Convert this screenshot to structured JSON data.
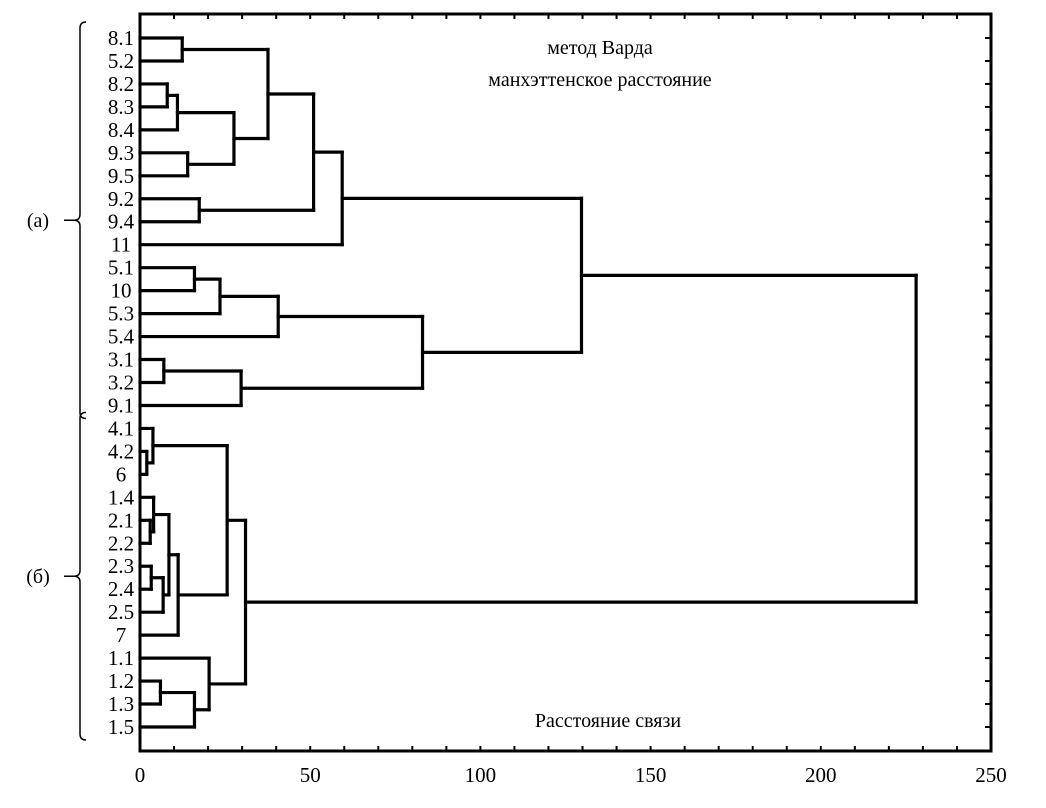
{
  "chart_data": {
    "type": "dendrogram",
    "orientation": "horizontal",
    "title_lines": [
      "метод Варда",
      "манхэттенское расстояние"
    ],
    "xlabel": "Расстояние связи",
    "xlim": [
      0,
      250
    ],
    "xticks": [
      0,
      50,
      100,
      150,
      200,
      250
    ],
    "grid": false,
    "groups": [
      {
        "label": "(а)",
        "leaves": [
          "8.1",
          "5.2",
          "8.2",
          "8.3",
          "8.4",
          "9.3",
          "9.5",
          "9.2",
          "9.4",
          "11",
          "5.1",
          "10",
          "5.3",
          "5.4",
          "3.1",
          "3.2",
          "9.1"
        ]
      },
      {
        "label": "(б)",
        "leaves": [
          "4.1",
          "4.2",
          "6",
          "1.4",
          "2.1",
          "2.2",
          "2.3",
          "2.4",
          "2.5",
          "7",
          "1.1",
          "1.2",
          "1.3",
          "1.5"
        ]
      }
    ],
    "tree": {
      "h": 228,
      "c": [
        {
          "h": 129.7,
          "c": [
            {
              "h": 59.4,
              "c": [
                {
                  "h": 51,
                  "c": [
                    {
                      "h": 37.6,
                      "c": [
                        {
                          "h": 12.4,
                          "c": [
                            "8.1",
                            "5.2"
                          ]
                        },
                        {
                          "h": 27.6,
                          "c": [
                            {
                              "h": 11,
                              "c": [
                                {
                                  "h": 8,
                                  "c": [
                                    "8.2",
                                    "8.3"
                                  ]
                                },
                                "8.4"
                              ]
                            },
                            {
                              "h": 14,
                              "c": [
                                "9.3",
                                "9.5"
                              ]
                            }
                          ]
                        }
                      ]
                    },
                    {
                      "h": 17.4,
                      "c": [
                        "9.2",
                        "9.4"
                      ]
                    }
                  ]
                },
                "11"
              ]
            },
            {
              "h": 83,
              "c": [
                {
                  "h": 40.6,
                  "c": [
                    {
                      "h": 23.5,
                      "c": [
                        {
                          "h": 16,
                          "c": [
                            "5.1",
                            "10"
                          ]
                        },
                        "5.3"
                      ]
                    },
                    "5.4"
                  ]
                },
                {
                  "h": 29.7,
                  "c": [
                    {
                      "h": 7,
                      "c": [
                        "3.1",
                        "3.2"
                      ]
                    },
                    "9.1"
                  ]
                }
              ]
            }
          ]
        },
        {
          "h": 31,
          "c": [
            {
              "h": 25.6,
              "c": [
                {
                  "h": 3.8,
                  "c": [
                    "4.1",
                    {
                      "h": 2,
                      "c": [
                        "4.2",
                        "6"
                      ]
                    }
                  ]
                },
                {
                  "h": 11.2,
                  "c": [
                    {
                      "h": 8.5,
                      "c": [
                        {
                          "h": 4,
                          "c": [
                            "1.4",
                            {
                              "h": 3,
                              "c": [
                                "2.1",
                                "2.2"
                              ]
                            }
                          ]
                        },
                        {
                          "h": 6.8,
                          "c": [
                            {
                              "h": 3.3,
                              "c": [
                                "2.3",
                                "2.4"
                              ]
                            },
                            "2.5"
                          ]
                        }
                      ]
                    },
                    "7"
                  ]
                }
              ]
            },
            {
              "h": 20.3,
              "c": [
                "1.1",
                {
                  "h": 16,
                  "c": [
                    {
                      "h": 6,
                      "c": [
                        "1.2",
                        "1.3"
                      ]
                    },
                    "1.5"
                  ]
                }
              ]
            }
          ]
        }
      ]
    }
  }
}
